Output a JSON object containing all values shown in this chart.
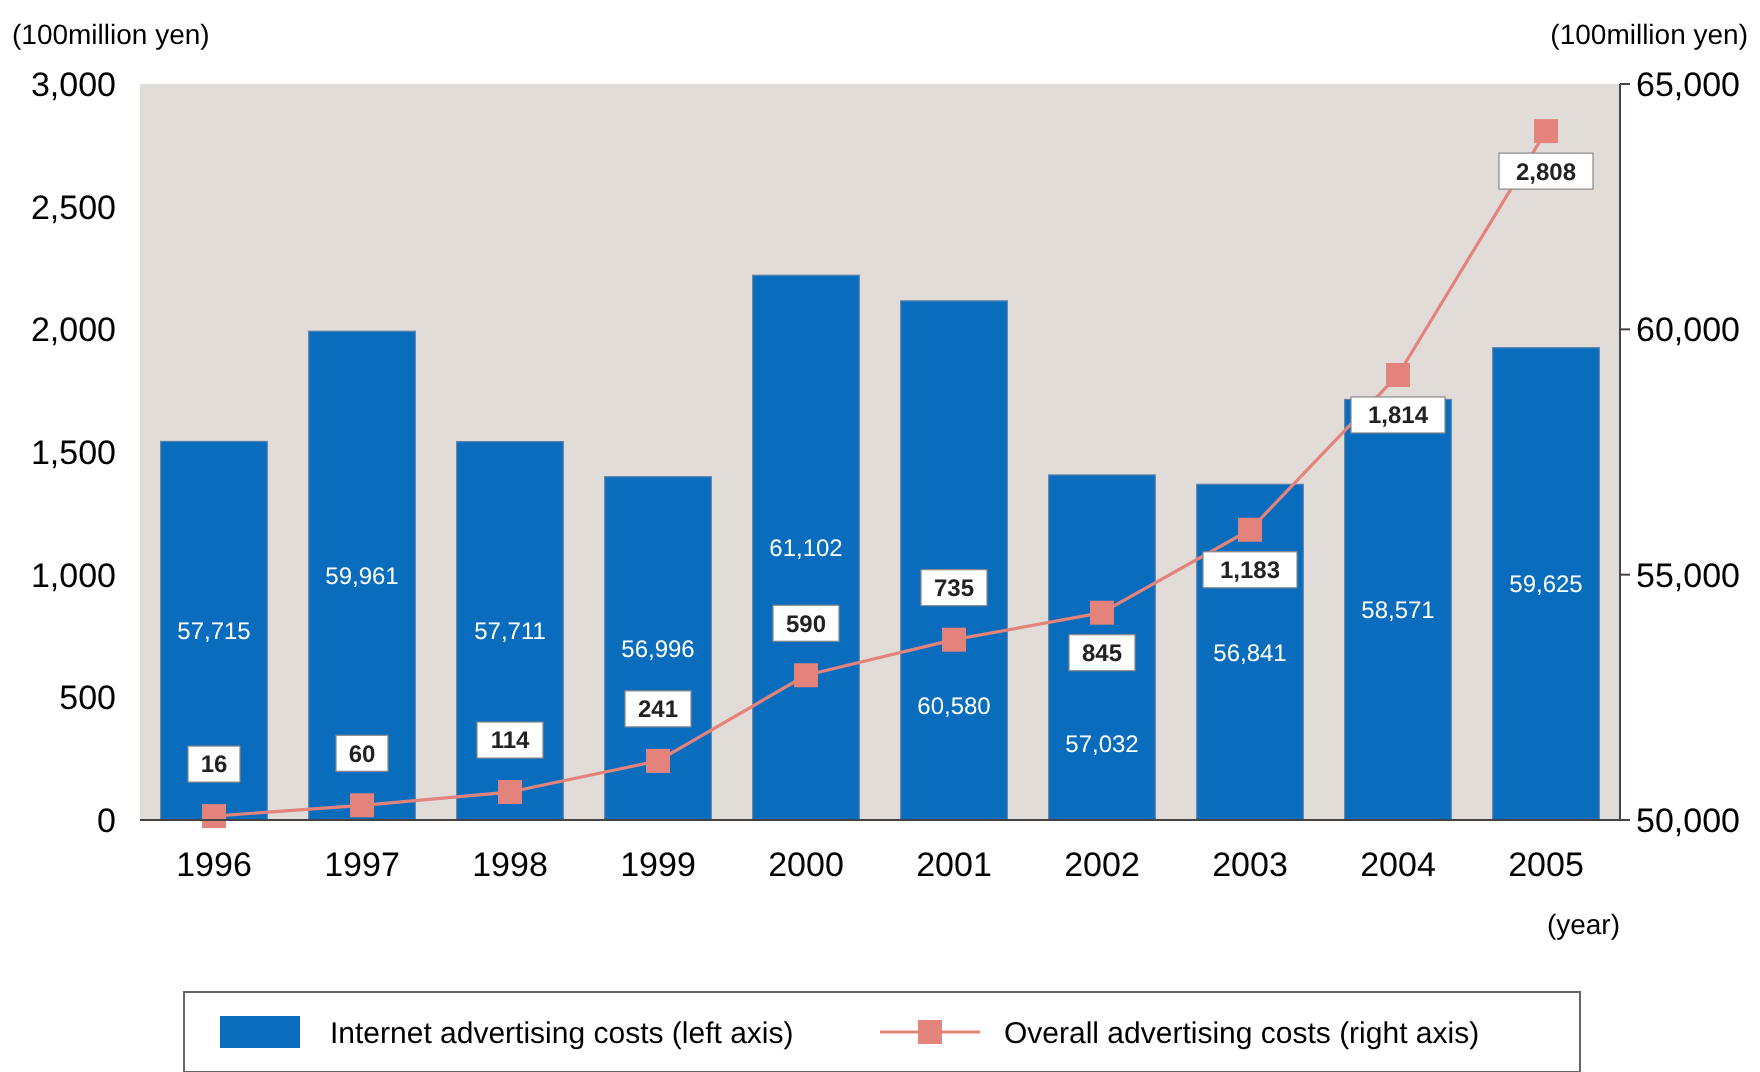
{
  "chart_data": {
    "type": "bar",
    "categories": [
      "1996",
      "1997",
      "1998",
      "1999",
      "2000",
      "2001",
      "2002",
      "2003",
      "2004",
      "2005"
    ],
    "xlabel": "(year)",
    "ylabel": "(100million yen)",
    "y2label": "(100million yen)",
    "series": [
      {
        "name": "Internet advertising costs (left axis)",
        "axis": "y2",
        "color": "#0a6cbc",
        "values": [
          57715,
          59961,
          57711,
          56996,
          61102,
          60580,
          57032,
          56841,
          58571,
          59625
        ],
        "value_labels": [
          "57,715",
          "59,961",
          "57,711",
          "56,996",
          "61,102",
          "60,580",
          "57,032",
          "56,841",
          "58,571",
          "59,625"
        ]
      },
      {
        "name": "Overall advertising costs (right axis)",
        "type": "line",
        "axis": "y",
        "color": "#e3837b",
        "marker": "square",
        "values": [
          16,
          60,
          114,
          241,
          590,
          735,
          845,
          1183,
          1814,
          2808
        ],
        "value_labels": [
          "16",
          "60",
          "114",
          "241",
          "590",
          "735",
          "845",
          "1,183",
          "1,814",
          "2,808"
        ]
      }
    ],
    "ylim": [
      0,
      3000
    ],
    "yticks": [
      {
        "value": 0,
        "label": "0"
      },
      {
        "value": 500,
        "label": "500"
      },
      {
        "value": 1000,
        "label": "1,000"
      },
      {
        "value": 1500,
        "label": "1,500"
      },
      {
        "value": 2000,
        "label": "2,000"
      },
      {
        "value": 2500,
        "label": "2,500"
      },
      {
        "value": 3000,
        "label": "3,000"
      }
    ],
    "y2lim": [
      50000,
      65000
    ],
    "y2ticks": [
      {
        "value": 50000,
        "label": "50,000"
      },
      {
        "value": 55000,
        "label": "55,000"
      },
      {
        "value": 60000,
        "label": "60,000"
      },
      {
        "value": 65000,
        "label": "65,000"
      }
    ],
    "legend": "bottom",
    "grid": false
  }
}
